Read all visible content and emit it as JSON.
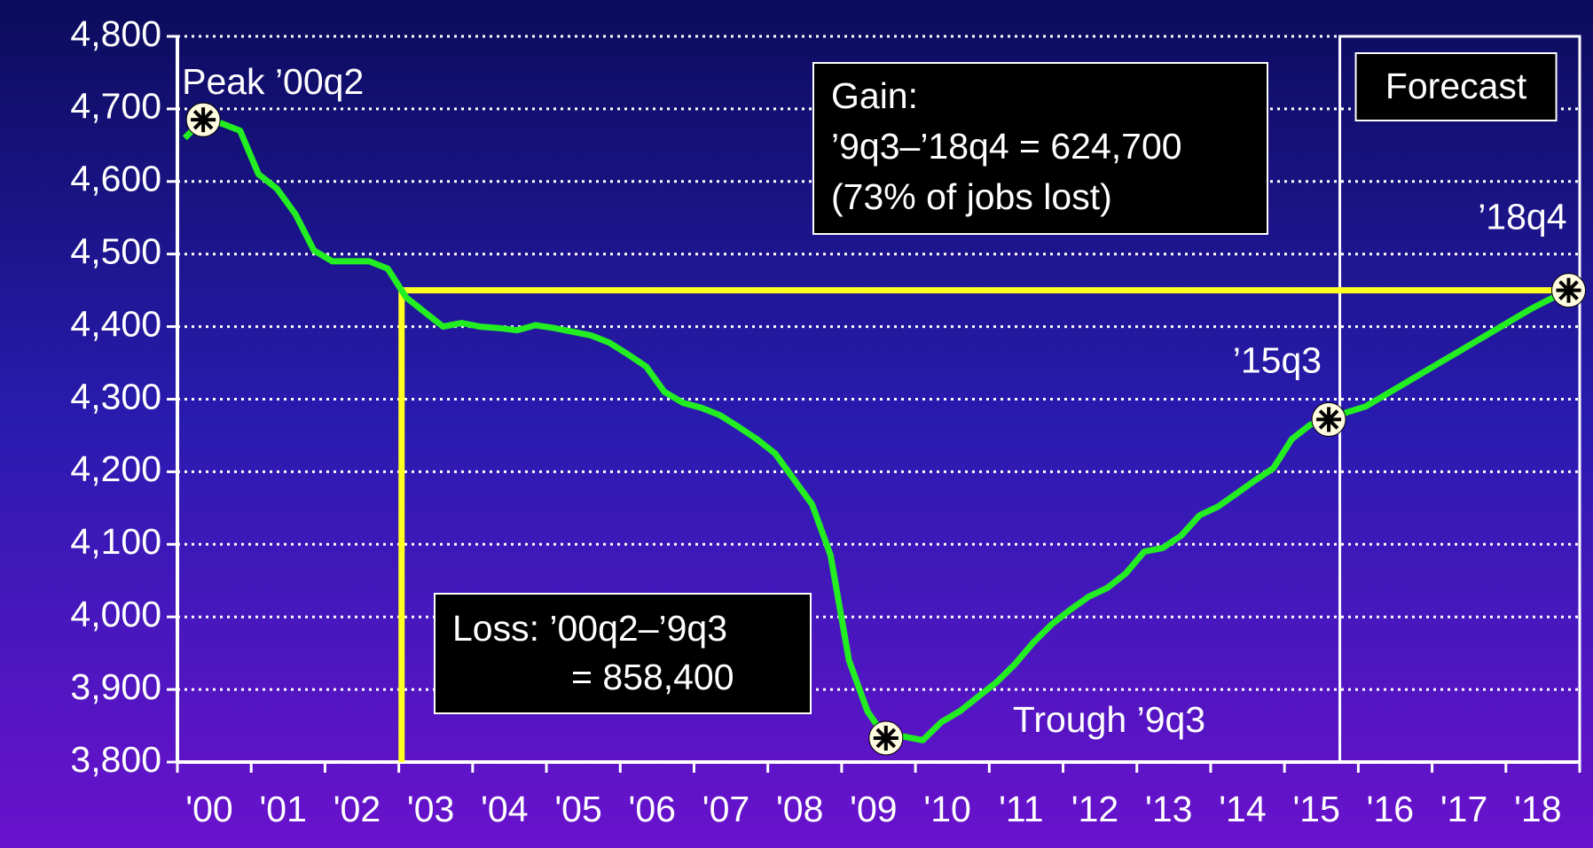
{
  "chart_data": {
    "type": "line",
    "x": [
      2000.1,
      2000.35,
      2000.6,
      2000.85,
      2001.1,
      2001.35,
      2001.6,
      2001.85,
      2002.1,
      2002.35,
      2002.6,
      2002.85,
      2003.1,
      2003.35,
      2003.6,
      2003.85,
      2004.1,
      2004.35,
      2004.6,
      2004.85,
      2005.1,
      2005.35,
      2005.6,
      2005.85,
      2006.1,
      2006.35,
      2006.6,
      2006.85,
      2007.1,
      2007.35,
      2007.6,
      2007.85,
      2008.1,
      2008.35,
      2008.6,
      2008.85,
      2009.1,
      2009.35,
      2009.6,
      2009.85,
      2010.1,
      2010.35,
      2010.6,
      2010.85,
      2011.1,
      2011.35,
      2011.6,
      2011.85,
      2012.1,
      2012.35,
      2012.6,
      2012.85,
      2013.1,
      2013.35,
      2013.6,
      2013.85,
      2014.1,
      2014.35,
      2014.6,
      2014.85,
      2015.1,
      2015.35,
      2015.6,
      2015.85,
      2016.1,
      2016.35,
      2016.6,
      2016.85,
      2017.1,
      2017.35,
      2017.6,
      2017.85,
      2018.1,
      2018.35,
      2018.6,
      2018.85
    ],
    "series": [
      {
        "color": "#22ee22",
        "values": [
          4660,
          4685,
          4680,
          4670,
          4610,
          4590,
          4555,
          4505,
          4490,
          4490,
          4490,
          4480,
          4440,
          4420,
          4400,
          4405,
          4400,
          4398,
          4395,
          4402,
          4398,
          4393,
          4388,
          4378,
          4362,
          4345,
          4310,
          4295,
          4288,
          4278,
          4262,
          4245,
          4225,
          4190,
          4155,
          4085,
          3940,
          3870,
          3833,
          3835,
          3830,
          3855,
          3870,
          3890,
          3910,
          3935,
          3965,
          3990,
          4010,
          4028,
          4040,
          4060,
          4090,
          4095,
          4112,
          4140,
          4152,
          4170,
          4188,
          4205,
          4245,
          4265,
          4272,
          4282,
          4290,
          4305,
          4320,
          4335,
          4350,
          4365,
          4380,
          4395,
          4410,
          4425,
          4438,
          4450
        ]
      }
    ],
    "xlim": [
      2000,
      2019
    ],
    "xticks": [
      {
        "value": 2000,
        "label": "'00"
      },
      {
        "value": 2001,
        "label": "'01"
      },
      {
        "value": 2002,
        "label": "'02"
      },
      {
        "value": 2003,
        "label": "'03"
      },
      {
        "value": 2004,
        "label": "'04"
      },
      {
        "value": 2005,
        "label": "'05"
      },
      {
        "value": 2006,
        "label": "'06"
      },
      {
        "value": 2007,
        "label": "'07"
      },
      {
        "value": 2008,
        "label": "'08"
      },
      {
        "value": 2009,
        "label": "'09"
      },
      {
        "value": 2010,
        "label": "'10"
      },
      {
        "value": 2011,
        "label": "'11"
      },
      {
        "value": 2012,
        "label": "'12"
      },
      {
        "value": 2013,
        "label": "'13"
      },
      {
        "value": 2014,
        "label": "'14"
      },
      {
        "value": 2015,
        "label": "'15"
      },
      {
        "value": 2016,
        "label": "'16"
      },
      {
        "value": 2017,
        "label": "'17"
      },
      {
        "value": 2018,
        "label": "'18"
      }
    ],
    "ylim": [
      3800,
      4800
    ],
    "yticks": [
      {
        "value": 3800,
        "label": "3,800"
      },
      {
        "value": 3900,
        "label": "3,900"
      },
      {
        "value": 4000,
        "label": "4,000"
      },
      {
        "value": 4100,
        "label": "4,100"
      },
      {
        "value": 4200,
        "label": "4,200"
      },
      {
        "value": 4300,
        "label": "4,300"
      },
      {
        "value": 4400,
        "label": "4,400"
      },
      {
        "value": 4500,
        "label": "4,500"
      },
      {
        "value": 4600,
        "label": "4,600"
      },
      {
        "value": 4700,
        "label": "4,700"
      },
      {
        "value": 4800,
        "label": "4,800"
      }
    ],
    "grid": true,
    "forecast_start": 2015.75,
    "forecast_label": "Forecast",
    "highlights": [
      {
        "index": 1,
        "label": "Peak ’00q2"
      },
      {
        "index": 38,
        "label": "Trough ’9q3"
      },
      {
        "index": 62,
        "label": "’15q3"
      },
      {
        "index": 75,
        "label": "’18q4"
      }
    ],
    "gain_box": [
      "Gain:",
      "’9q3–’18q4 = 624,700",
      "(73% of jobs lost)"
    ],
    "loss_box": [
      "Loss: ’00q2–’9q3",
      "= 858,400"
    ],
    "reference_color": "#ffff22"
  }
}
